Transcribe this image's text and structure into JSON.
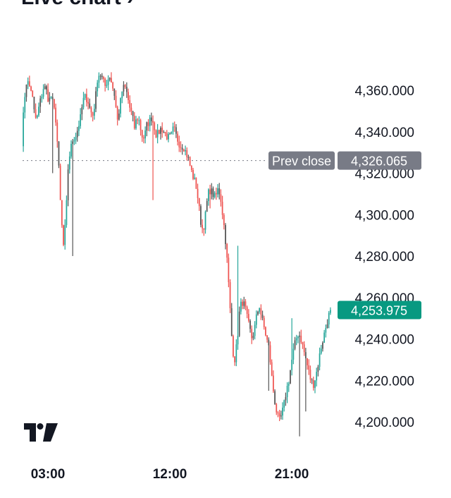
{
  "header": {
    "title": "Live chart ›",
    "menu_glyph": "·"
  },
  "colors": {
    "up": "#26a69a",
    "down": "#ef5350",
    "candle_dark": "#555555",
    "prev_close_pill": "#787b86",
    "last_price_pill": "#089981",
    "text": "#131722"
  },
  "logo": {
    "name": "tradingview-logo-icon"
  },
  "chart_data": {
    "type": "candlestick",
    "y_axis": {
      "range": [
        4190,
        4375
      ],
      "ticks": [
        4200,
        4220,
        4240,
        4260,
        4280,
        4300,
        4320,
        4340,
        4360
      ],
      "tick_labels": [
        "4,200.000",
        "4,220.000",
        "4,240.000",
        "4,260.000",
        "4,280.000",
        "4,300.000",
        "4,320.000",
        "4,340.000",
        "4,360.000"
      ]
    },
    "x_axis": {
      "tick_labels": [
        "03:00",
        "12:00",
        "21:00"
      ]
    },
    "prev_close": {
      "label": "Prev close",
      "value": 4326.065,
      "value_label": "4,326.065"
    },
    "last_price": {
      "value": 4253.975,
      "value_label": "4,253.975"
    },
    "anchors": [
      4335,
      4355,
      4365,
      4362,
      4360,
      4350,
      4345,
      4352,
      4357,
      4362,
      4360,
      4355,
      4357,
      4352,
      4345,
      4325,
      4300,
      4285,
      4298,
      4325,
      4332,
      4337,
      4338,
      4342,
      4347,
      4355,
      4357,
      4355,
      4350,
      4348,
      4355,
      4367,
      4368,
      4365,
      4362,
      4365,
      4367,
      4362,
      4357,
      4345,
      4352,
      4360,
      4362,
      4358,
      4352,
      4348,
      4342,
      4347,
      4345,
      4338,
      4337,
      4343,
      4345,
      4347,
      4343,
      4338,
      4340,
      4342,
      4340,
      4338,
      4337,
      4338,
      4342,
      4338,
      4335,
      4333,
      4333,
      4330,
      4327,
      4322,
      4318,
      4315,
      4307,
      4297,
      4292,
      4300,
      4310,
      4312,
      4310,
      4308,
      4312,
      4310,
      4300,
      4290,
      4275,
      4255,
      4235,
      4230,
      4240,
      4255,
      4258,
      4256,
      4250,
      4245,
      4240,
      4245,
      4252,
      4256,
      4250,
      4245,
      4240,
      4235,
      4222,
      4212,
      4205,
      4200,
      4203,
      4208,
      4215,
      4220,
      4228,
      4235,
      4240,
      4243,
      4240,
      4235,
      4230,
      4225,
      4220,
      4218,
      4222,
      4228,
      4235,
      4240,
      4245,
      4250,
      4254
    ]
  }
}
